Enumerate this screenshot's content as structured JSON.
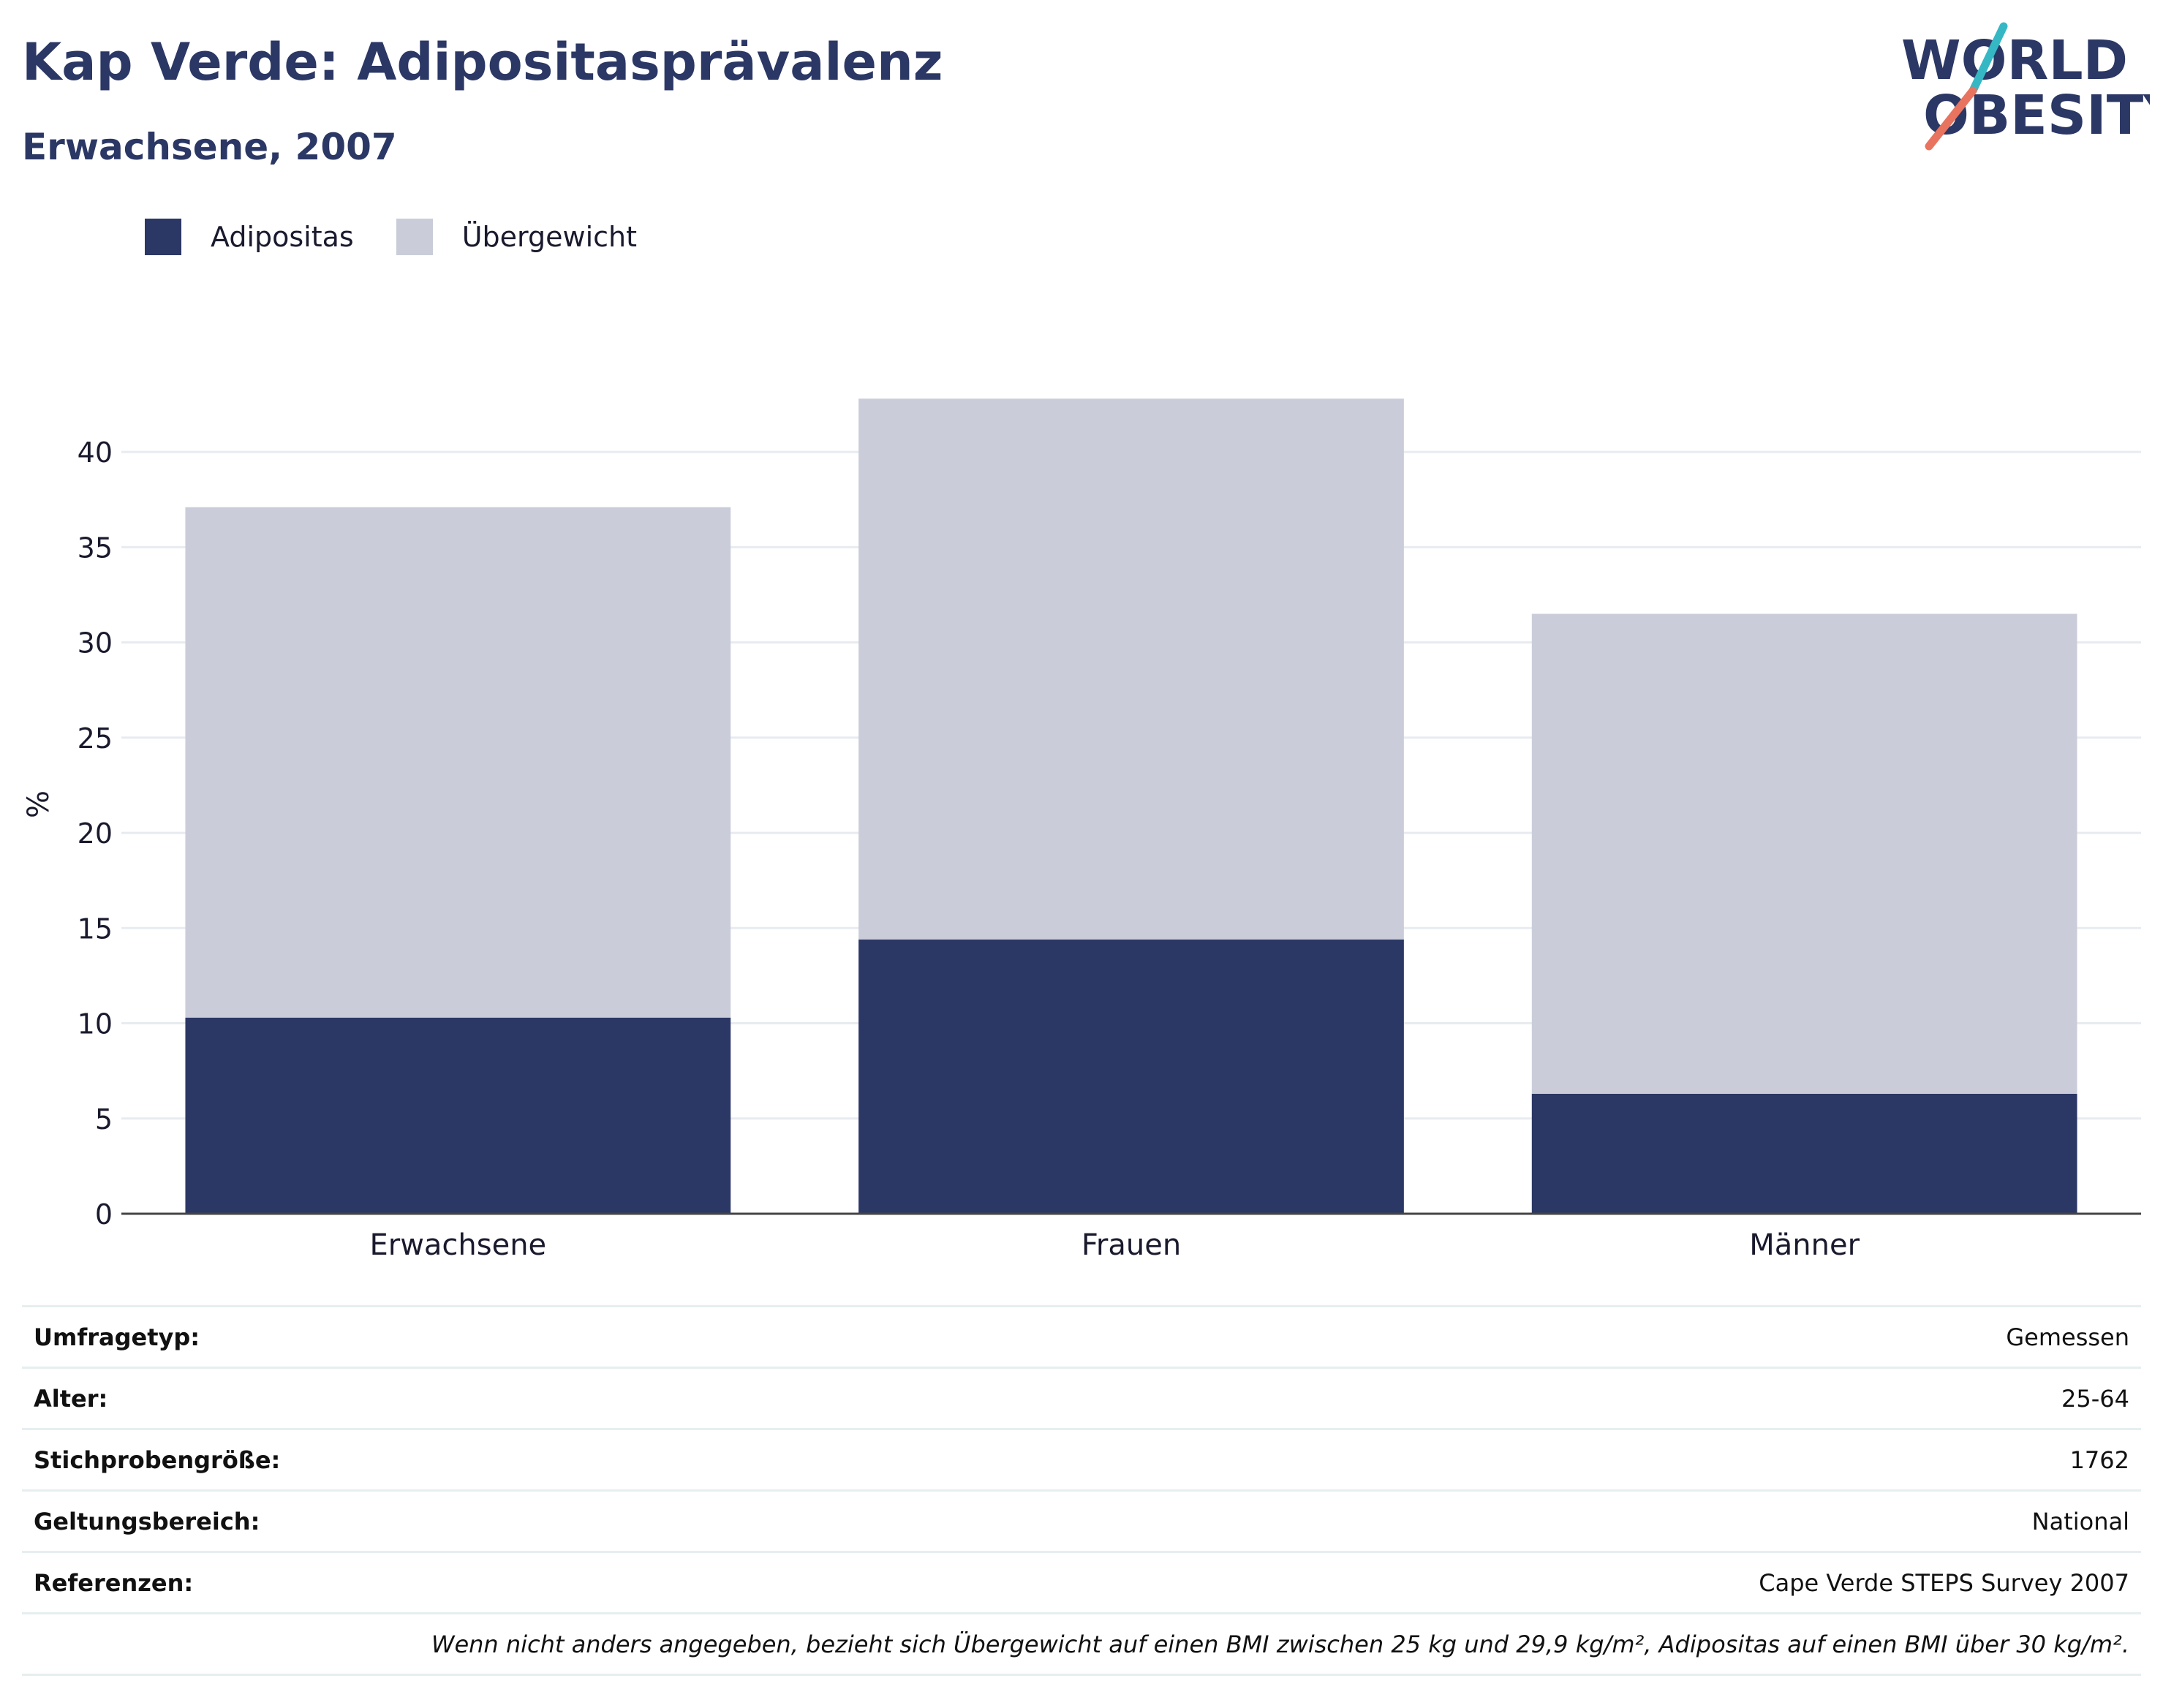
{
  "header": {
    "title": "Kap Verde: Adipositasprävalenz",
    "subtitle": "Erwachsene, 2007"
  },
  "logo": {
    "line1": "WORLD",
    "line2": "OBESITY"
  },
  "colors": {
    "obesity": "#2b3764",
    "overweight": "#cacdd9",
    "text": "#2b3764",
    "grid": "#e8ebef"
  },
  "chart_data": {
    "type": "bar",
    "stacked": true,
    "categories": [
      "Erwachsene",
      "Frauen",
      "Männer"
    ],
    "series": [
      {
        "name": "Adipositas",
        "values": [
          10.3,
          14.4,
          6.3
        ],
        "color": "#2b3764"
      },
      {
        "name": "Übergewicht",
        "values": [
          26.8,
          28.4,
          25.2
        ],
        "color": "#cacdd9"
      }
    ],
    "ylabel": "%",
    "ylim": [
      0,
      43
    ],
    "yticks": [
      0,
      5,
      10,
      15,
      20,
      25,
      30,
      35,
      40
    ],
    "grid": true,
    "legend_position": "top-left"
  },
  "info": {
    "rows": [
      {
        "label": "Umfragetyp:",
        "value": "Gemessen"
      },
      {
        "label": "Alter:",
        "value": "25-64"
      },
      {
        "label": "Stichprobengröße:",
        "value": "1762"
      },
      {
        "label": "Geltungsbereich:",
        "value": "National"
      },
      {
        "label": "Referenzen:",
        "value": "Cape Verde STEPS Survey 2007"
      }
    ],
    "note": "Wenn nicht anders angegeben, bezieht sich Übergewicht auf einen BMI zwischen 25 kg und 29,9 kg/m², Adipositas auf einen BMI über 30 kg/m²."
  }
}
